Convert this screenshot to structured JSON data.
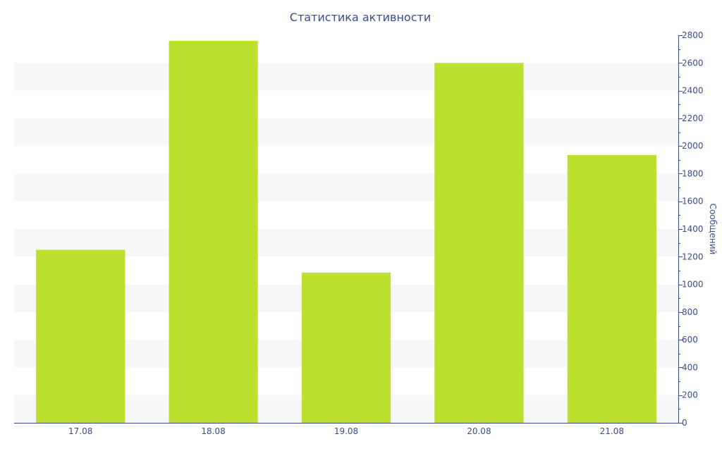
{
  "chart_data": {
    "type": "bar",
    "title": "Статистика активности",
    "categories": [
      "17.08",
      "18.08",
      "19.08",
      "20.08",
      "21.08"
    ],
    "series": [
      {
        "values": [
          1250,
          2760,
          1085,
          2600,
          1935
        ]
      }
    ],
    "xlabel": "",
    "ylabel": "Сообщений",
    "y_axis_side": "right",
    "ylim": [
      0,
      2800
    ],
    "yticks": [
      0,
      200,
      400,
      600,
      800,
      1000,
      1200,
      1400,
      1600,
      1800,
      2000,
      2200,
      2400,
      2600,
      2800
    ],
    "grid": "alternating horizontal bands",
    "colors": {
      "bar": "#bbe02e",
      "band": "#f7f7f7",
      "axis": "#3a4c8a",
      "text": "#3a4c8a"
    }
  }
}
